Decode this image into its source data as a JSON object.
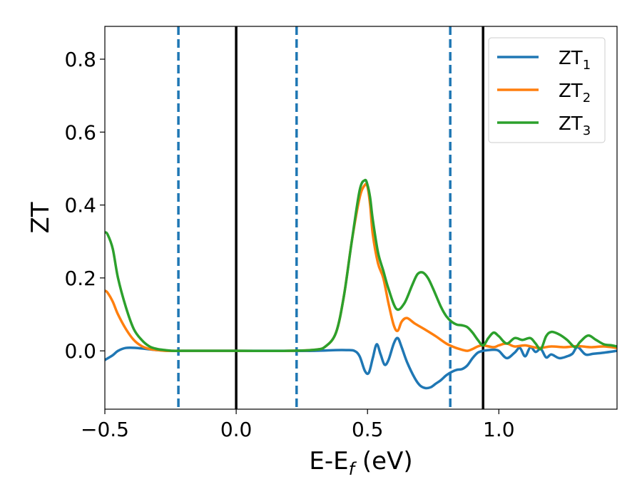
{
  "chart_data": {
    "type": "line",
    "title": "",
    "xlabel": "E-E",
    "xlabel_sub": "f",
    "xlabel_unit": " (eV)",
    "ylabel": "ZT",
    "xlim": [
      -0.5,
      1.45
    ],
    "ylim": [
      -0.16,
      0.89
    ],
    "xticks": [
      -0.5,
      0.0,
      0.5,
      1.0
    ],
    "xtick_labels": [
      "−0.5",
      "0.0",
      "0.5",
      "1.0"
    ],
    "yticks": [
      0.0,
      0.2,
      0.4,
      0.6,
      0.8
    ],
    "ytick_labels": [
      "0.0",
      "0.2",
      "0.4",
      "0.6",
      "0.8"
    ],
    "grid": false,
    "legend_position": "top-right",
    "vlines_solid": [
      0.0,
      0.94
    ],
    "vlines_dashed": [
      -0.22,
      0.23,
      0.815
    ],
    "vline_colors": {
      "solid": "#000000",
      "dashed": "#1f77b4"
    },
    "series": [
      {
        "name": "ZT",
        "name_sub": "1",
        "color": "#1f77b4",
        "x": [
          -0.5,
          -0.47,
          -0.45,
          -0.42,
          -0.38,
          -0.34,
          -0.3,
          -0.25,
          -0.2,
          0.0,
          0.2,
          0.3,
          0.38,
          0.42,
          0.45,
          0.47,
          0.49,
          0.505,
          0.52,
          0.535,
          0.55,
          0.565,
          0.58,
          0.6,
          0.615,
          0.63,
          0.65,
          0.68,
          0.7,
          0.72,
          0.74,
          0.76,
          0.78,
          0.8,
          0.82,
          0.84,
          0.86,
          0.88,
          0.9,
          0.92,
          0.94,
          0.96,
          0.98,
          1.0,
          1.03,
          1.06,
          1.08,
          1.1,
          1.12,
          1.14,
          1.16,
          1.18,
          1.2,
          1.23,
          1.26,
          1.28,
          1.3,
          1.33,
          1.36,
          1.4,
          1.45
        ],
        "y": [
          -0.025,
          -0.012,
          0.0,
          0.008,
          0.008,
          0.005,
          0.002,
          0.0,
          0.0,
          0.0,
          0.0,
          0.0,
          0.002,
          0.002,
          0.0,
          -0.015,
          -0.055,
          -0.06,
          -0.02,
          0.018,
          -0.01,
          -0.038,
          -0.025,
          0.02,
          0.035,
          0.01,
          -0.03,
          -0.075,
          -0.095,
          -0.102,
          -0.1,
          -0.09,
          -0.08,
          -0.067,
          -0.058,
          -0.052,
          -0.05,
          -0.04,
          -0.02,
          -0.005,
          0.0,
          0.002,
          0.003,
          0.0,
          -0.02,
          -0.005,
          0.008,
          -0.015,
          0.01,
          -0.003,
          0.005,
          -0.018,
          -0.01,
          -0.02,
          -0.015,
          -0.008,
          0.01,
          -0.01,
          -0.008,
          -0.005,
          0.0
        ]
      },
      {
        "name": "ZT",
        "name_sub": "2",
        "color": "#ff7f0e",
        "x": [
          -0.5,
          -0.49,
          -0.47,
          -0.45,
          -0.42,
          -0.39,
          -0.36,
          -0.33,
          -0.3,
          -0.27,
          -0.24,
          -0.2,
          0.0,
          0.2,
          0.3,
          0.34,
          0.38,
          0.41,
          0.44,
          0.47,
          0.49,
          0.5,
          0.51,
          0.52,
          0.54,
          0.56,
          0.58,
          0.6,
          0.615,
          0.63,
          0.65,
          0.68,
          0.72,
          0.76,
          0.8,
          0.83,
          0.86,
          0.88,
          0.9,
          0.92,
          0.94,
          0.98,
          1.0,
          1.03,
          1.06,
          1.1,
          1.15,
          1.2,
          1.25,
          1.3,
          1.35,
          1.4,
          1.45
        ],
        "y": [
          0.165,
          0.16,
          0.135,
          0.1,
          0.06,
          0.03,
          0.013,
          0.005,
          0.002,
          0.0,
          0.0,
          0.0,
          0.0,
          0.0,
          0.003,
          0.012,
          0.05,
          0.15,
          0.3,
          0.42,
          0.455,
          0.45,
          0.4,
          0.32,
          0.24,
          0.2,
          0.13,
          0.07,
          0.055,
          0.08,
          0.09,
          0.075,
          0.058,
          0.04,
          0.02,
          0.01,
          0.003,
          0.0,
          0.005,
          0.012,
          0.015,
          0.01,
          0.015,
          0.02,
          0.012,
          0.015,
          0.008,
          0.012,
          0.01,
          0.013,
          0.01,
          0.012,
          0.008
        ]
      },
      {
        "name": "ZT",
        "name_sub": "3",
        "color": "#2ca02c",
        "x": [
          -0.5,
          -0.49,
          -0.47,
          -0.45,
          -0.42,
          -0.39,
          -0.36,
          -0.33,
          -0.3,
          -0.27,
          -0.24,
          -0.2,
          0.0,
          0.2,
          0.3,
          0.34,
          0.38,
          0.41,
          0.44,
          0.47,
          0.49,
          0.5,
          0.51,
          0.52,
          0.54,
          0.56,
          0.58,
          0.61,
          0.64,
          0.67,
          0.69,
          0.71,
          0.73,
          0.75,
          0.78,
          0.8,
          0.82,
          0.84,
          0.86,
          0.88,
          0.9,
          0.92,
          0.94,
          0.96,
          0.98,
          1.0,
          1.03,
          1.06,
          1.09,
          1.12,
          1.14,
          1.16,
          1.18,
          1.2,
          1.23,
          1.26,
          1.29,
          1.31,
          1.34,
          1.37,
          1.4,
          1.43,
          1.45
        ],
        "y": [
          0.325,
          0.32,
          0.28,
          0.2,
          0.12,
          0.06,
          0.03,
          0.012,
          0.005,
          0.002,
          0.0,
          0.0,
          0.0,
          0.0,
          0.003,
          0.012,
          0.05,
          0.15,
          0.3,
          0.44,
          0.468,
          0.455,
          0.42,
          0.36,
          0.27,
          0.22,
          0.17,
          0.115,
          0.13,
          0.18,
          0.21,
          0.215,
          0.2,
          0.17,
          0.12,
          0.095,
          0.08,
          0.072,
          0.07,
          0.065,
          0.05,
          0.03,
          0.015,
          0.035,
          0.05,
          0.04,
          0.02,
          0.035,
          0.03,
          0.035,
          0.02,
          0.005,
          0.04,
          0.052,
          0.045,
          0.03,
          0.01,
          0.025,
          0.042,
          0.03,
          0.018,
          0.015,
          0.012
        ]
      }
    ]
  }
}
